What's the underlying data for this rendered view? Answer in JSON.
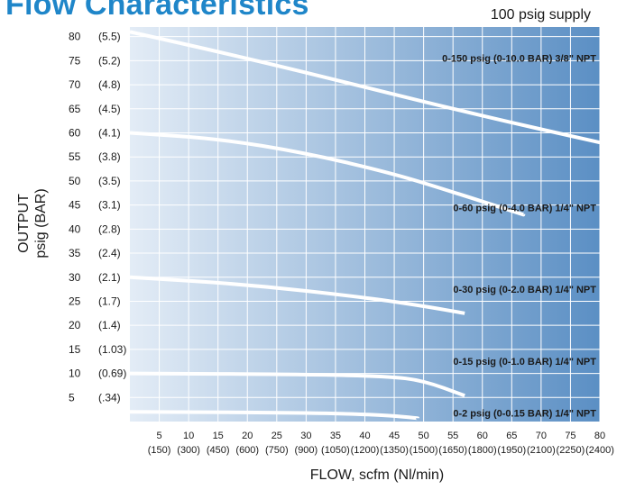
{
  "header": {
    "title": "Flow Characteristics",
    "supply_note": "100 psig supply"
  },
  "colors": {
    "title": "#1f86c9",
    "gradient_start": "#e3ecf6",
    "gradient_end": "#5b8fc4",
    "grid": "#ffffff",
    "curve": "#ffffff"
  },
  "chart_data": {
    "type": "line",
    "xlabel": "FLOW, scfm (Nl/min)",
    "ylabel": [
      "OUTPUT",
      "psig (BAR)"
    ],
    "xlim": [
      0,
      80
    ],
    "ylim": [
      0,
      82
    ],
    "grid": true,
    "x_ticks": [
      {
        "value": 5,
        "scfm": "5",
        "nlmin": "(150)"
      },
      {
        "value": 10,
        "scfm": "10",
        "nlmin": "(300)"
      },
      {
        "value": 15,
        "scfm": "15",
        "nlmin": "(450)"
      },
      {
        "value": 20,
        "scfm": "20",
        "nlmin": "(600)"
      },
      {
        "value": 25,
        "scfm": "25",
        "nlmin": "(750)"
      },
      {
        "value": 30,
        "scfm": "30",
        "nlmin": "(900)"
      },
      {
        "value": 35,
        "scfm": "35",
        "nlmin": "(1050)"
      },
      {
        "value": 40,
        "scfm": "40",
        "nlmin": "(1200)"
      },
      {
        "value": 45,
        "scfm": "45",
        "nlmin": "(1350)"
      },
      {
        "value": 50,
        "scfm": "50",
        "nlmin": "(1500)"
      },
      {
        "value": 55,
        "scfm": "55",
        "nlmin": "(1650)"
      },
      {
        "value": 60,
        "scfm": "60",
        "nlmin": "(1800)"
      },
      {
        "value": 65,
        "scfm": "65",
        "nlmin": "(1950)"
      },
      {
        "value": 70,
        "scfm": "70",
        "nlmin": "(2100)"
      },
      {
        "value": 75,
        "scfm": "75",
        "nlmin": "(2250)"
      },
      {
        "value": 80,
        "scfm": "80",
        "nlmin": "(2400)"
      }
    ],
    "y_ticks": [
      {
        "value": 80,
        "psig": "80",
        "bar": "(5.5)"
      },
      {
        "value": 75,
        "psig": "75",
        "bar": "(5.2)"
      },
      {
        "value": 70,
        "psig": "70",
        "bar": "(4.8)"
      },
      {
        "value": 65,
        "psig": "65",
        "bar": "(4.5)"
      },
      {
        "value": 60,
        "psig": "60",
        "bar": "(4.1)"
      },
      {
        "value": 55,
        "psig": "55",
        "bar": "(3.8)"
      },
      {
        "value": 50,
        "psig": "50",
        "bar": "(3.5)"
      },
      {
        "value": 45,
        "psig": "45",
        "bar": "(3.1)"
      },
      {
        "value": 40,
        "psig": "40",
        "bar": "(2.8)"
      },
      {
        "value": 35,
        "psig": "35",
        "bar": "(2.4)"
      },
      {
        "value": 30,
        "psig": "30",
        "bar": "(2.1)"
      },
      {
        "value": 25,
        "psig": "25",
        "bar": "(1.7)"
      },
      {
        "value": 20,
        "psig": "20",
        "bar": "(1.4)"
      },
      {
        "value": 15,
        "psig": "15",
        "bar": "(1.03)"
      },
      {
        "value": 10,
        "psig": "10",
        "bar": "(0.69)"
      },
      {
        "value": 5,
        "psig": "5",
        "bar": "(.34)"
      }
    ],
    "series": [
      {
        "name": "0-150 psig (0-10.0 BAR) 3/8\" NPT",
        "x": [
          0,
          20,
          40,
          60,
          80
        ],
        "y": [
          81,
          75.5,
          69.5,
          63.5,
          58
        ]
      },
      {
        "name": "0-60 psig (0-4.0 BAR) 1/4\" NPT",
        "x": [
          0,
          15,
          30,
          45,
          55,
          67
        ],
        "y": [
          60,
          58.8,
          55.8,
          51.5,
          47.7,
          43
        ]
      },
      {
        "name": "0-30 psig (0-2.0 BAR) 1/4\" NPT",
        "x": [
          0,
          20,
          40,
          50,
          57
        ],
        "y": [
          30,
          28.5,
          25.8,
          24,
          22.5
        ]
      },
      {
        "name": "0-15 psig (0-1.0 BAR) 1/4\" NPT",
        "x": [
          0,
          30,
          44,
          50,
          57
        ],
        "y": [
          10,
          9.8,
          9.4,
          8.5,
          5.4
        ]
      },
      {
        "name": "0-2 psig (0-0.15 BAR) 1/4\" NPT",
        "x": [
          0,
          25,
          42,
          49
        ],
        "y": [
          2,
          1.9,
          1.5,
          0.7
        ]
      }
    ]
  }
}
